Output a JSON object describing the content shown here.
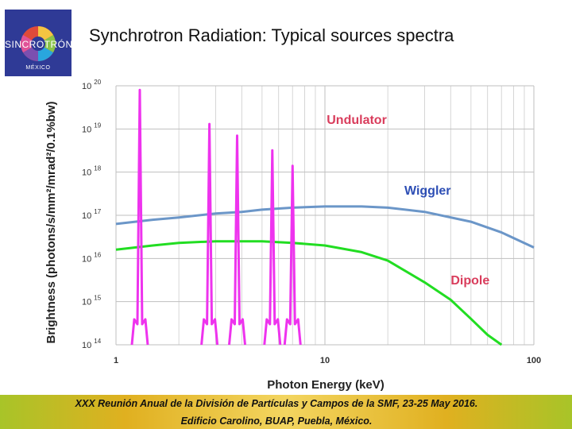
{
  "logo": {
    "word": "SINCROTRÓN",
    "country": "MÉXICO"
  },
  "header": {
    "title": "Synchrotron Radiation: Typical sources spectra"
  },
  "footer": {
    "line1": "XXX Reunión Anual de la División de Partículas y Campos de la SMF, 23-25 May 2016.",
    "line2": "Edificio Carolino, BUAP, Puebla, México."
  },
  "chart_data": {
    "type": "line",
    "title": "Synchrotron Radiation: Typical sources spectra",
    "xlabel": "Photon Energy (keV)",
    "ylabel": "Brightness  (photons/s/mm²/mrad²/0.1%bw)",
    "x_scale": "log",
    "y_scale": "log",
    "xlim": [
      1,
      100
    ],
    "ylim": [
      100000000000000.0,
      1e+20
    ],
    "x_ticks": [
      "1",
      "10",
      "100"
    ],
    "y_ticks": [
      {
        "base": "10",
        "exp": "20"
      },
      {
        "base": "10",
        "exp": "19"
      },
      {
        "base": "10",
        "exp": "18"
      },
      {
        "base": "10",
        "exp": "17"
      },
      {
        "base": "10",
        "exp": "16"
      },
      {
        "base": "10",
        "exp": "15"
      },
      {
        "base": "10",
        "exp": "14"
      }
    ],
    "grid": true,
    "colors": {
      "undulator": "#ee33ee",
      "wiggler": "#6b96c8",
      "dipole": "#22dd22"
    },
    "series": [
      {
        "name": "Wiggler",
        "x": [
          1.0,
          1.5,
          2.0,
          3.0,
          4.0,
          5.0,
          7.0,
          10.0,
          15.0,
          20.0,
          30.0,
          50.0,
          70.0,
          100.0
        ],
        "y": [
          6.3e+16,
          7.9e+16,
          8.9e+16,
          1.1e+17,
          1.2e+17,
          1.35e+17,
          1.5e+17,
          1.6e+17,
          1.6e+17,
          1.5e+17,
          1.2e+17,
          7.1e+16,
          4e+16,
          1.8e+16
        ]
      },
      {
        "name": "Dipole",
        "x": [
          1.0,
          1.5,
          2.0,
          3.0,
          5.0,
          7.0,
          10.0,
          15.0,
          20.0,
          30.0,
          40.0,
          50.0,
          60.0,
          70.0
        ],
        "y": [
          1.6e+16,
          2e+16,
          2.3e+16,
          2.5e+16,
          2.5e+16,
          2.3e+16,
          2e+16,
          1.4e+16,
          8900000000000000.0,
          2800000000000000.0,
          1100000000000000.0,
          400000000000000.0,
          170000000000000.0,
          100000000000000.0
        ]
      },
      {
        "name": "Undulator",
        "peaks": [
          {
            "x": 1.3,
            "y": 8e+19
          },
          {
            "x": 2.8,
            "y": 1.3e+19
          },
          {
            "x": 3.8,
            "y": 7e+18
          },
          {
            "x": 5.6,
            "y": 3.2e+18
          },
          {
            "x": 7.0,
            "y": 1.4e+18
          }
        ]
      }
    ],
    "annotations": [
      {
        "text": "Undulator",
        "x": 10.2,
        "y": 1.3e+19,
        "color": "#d93d5c"
      },
      {
        "text": "Wiggler",
        "x": 24.0,
        "y": 3e+17,
        "color": "#2e4fb5"
      },
      {
        "text": "Dipole",
        "x": 40.0,
        "y": 2500000000000000.0,
        "color": "#d93d5c"
      }
    ]
  }
}
